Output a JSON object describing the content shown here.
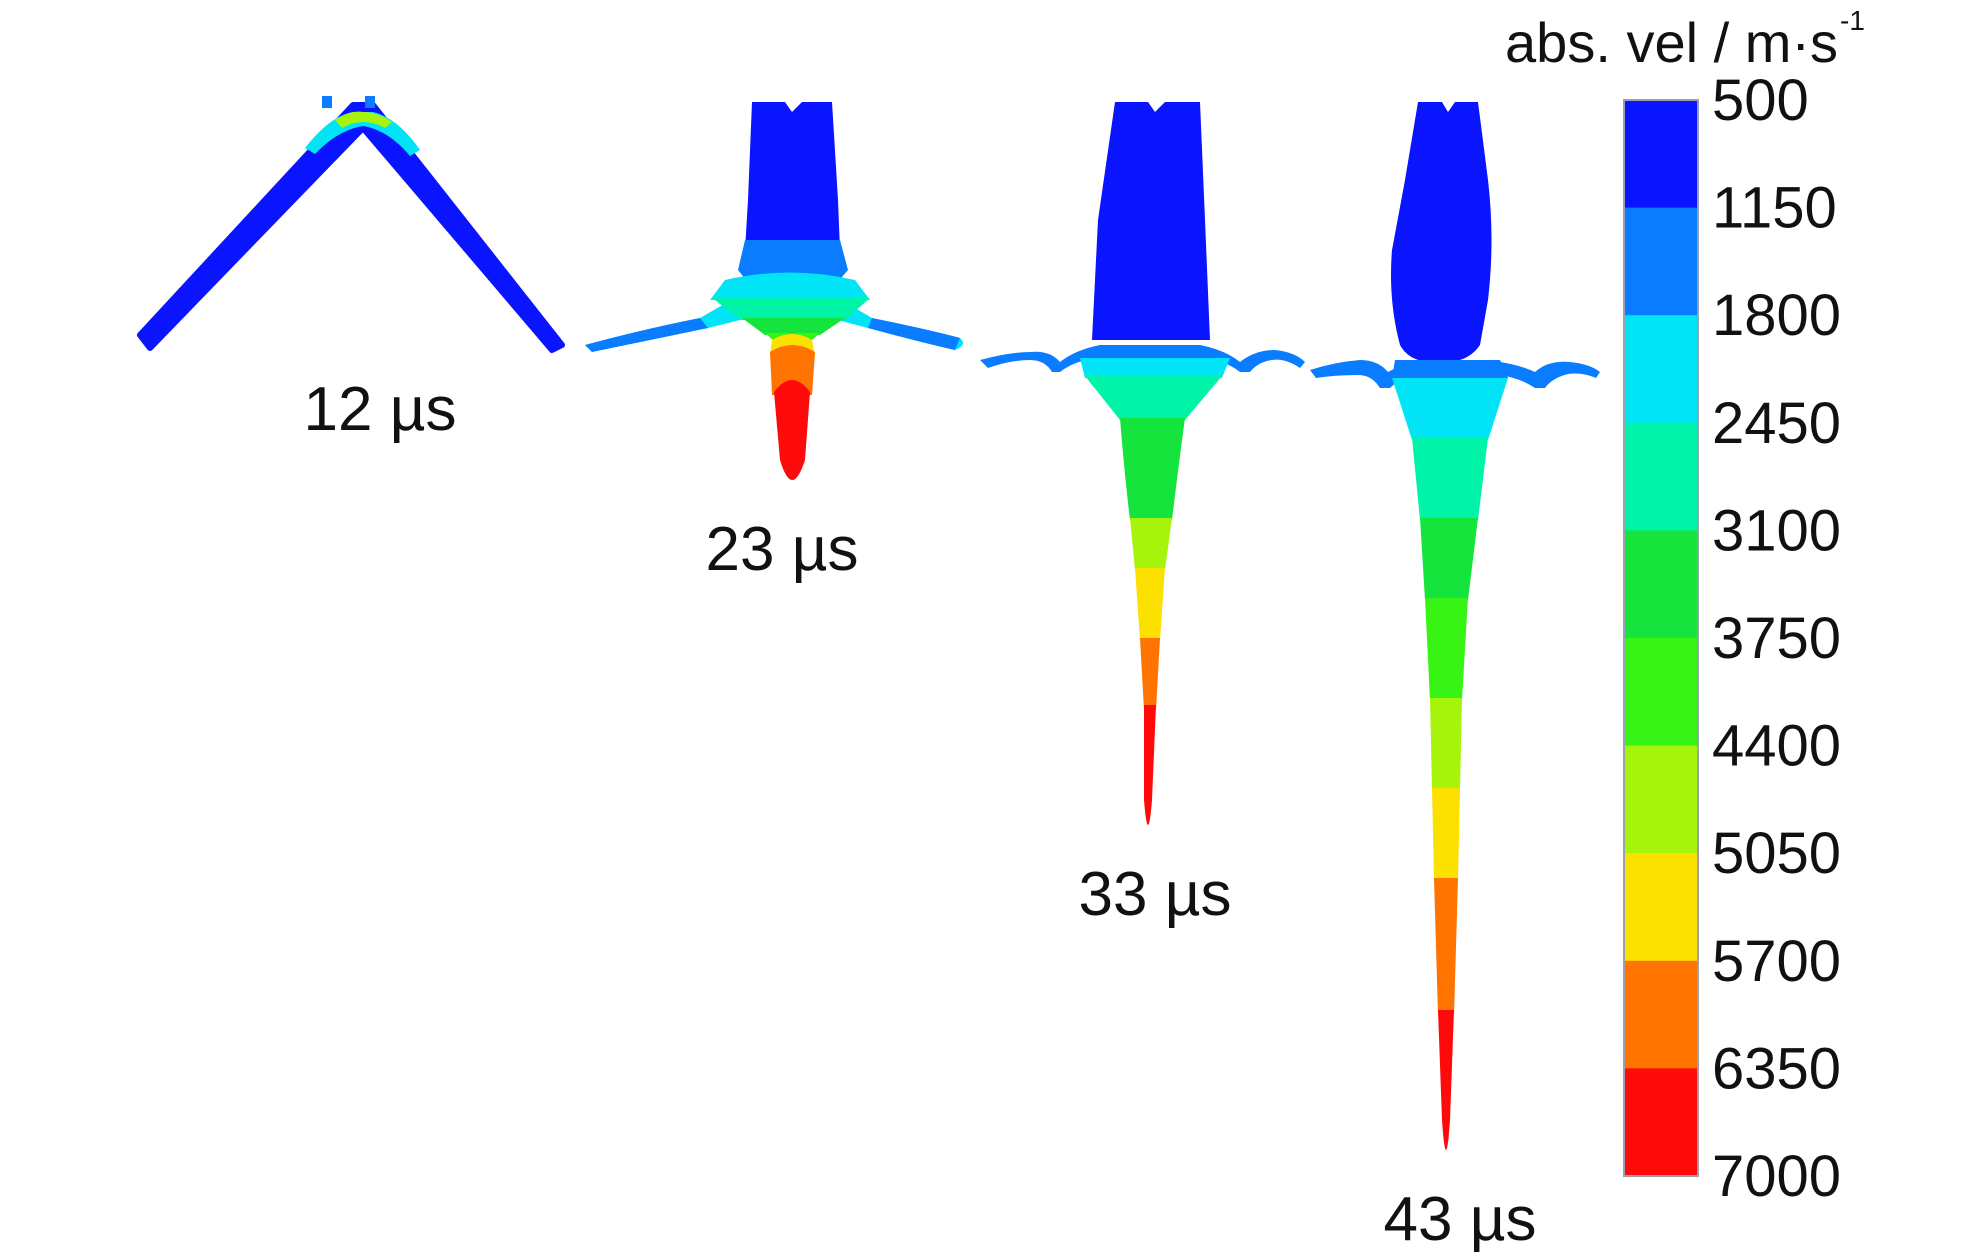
{
  "title": {
    "text": "abs. vel / m·s",
    "exponent": "-1"
  },
  "colorbar": {
    "ticks": [
      "500",
      "1150",
      "1800",
      "2450",
      "3100",
      "3750",
      "4400",
      "5050",
      "5700",
      "6350",
      "7000"
    ],
    "colors": [
      "#0a14ff",
      "#0a7cff",
      "#00e4f6",
      "#00f4a8",
      "#14e43c",
      "#38f414",
      "#a6f40c",
      "#fce000",
      "#ff7300",
      "#ff0a0a"
    ]
  },
  "snapshots": [
    {
      "label": "12 µs"
    },
    {
      "label": "23 µs"
    },
    {
      "label": "33 µs"
    },
    {
      "label": "43 µs"
    }
  ]
}
